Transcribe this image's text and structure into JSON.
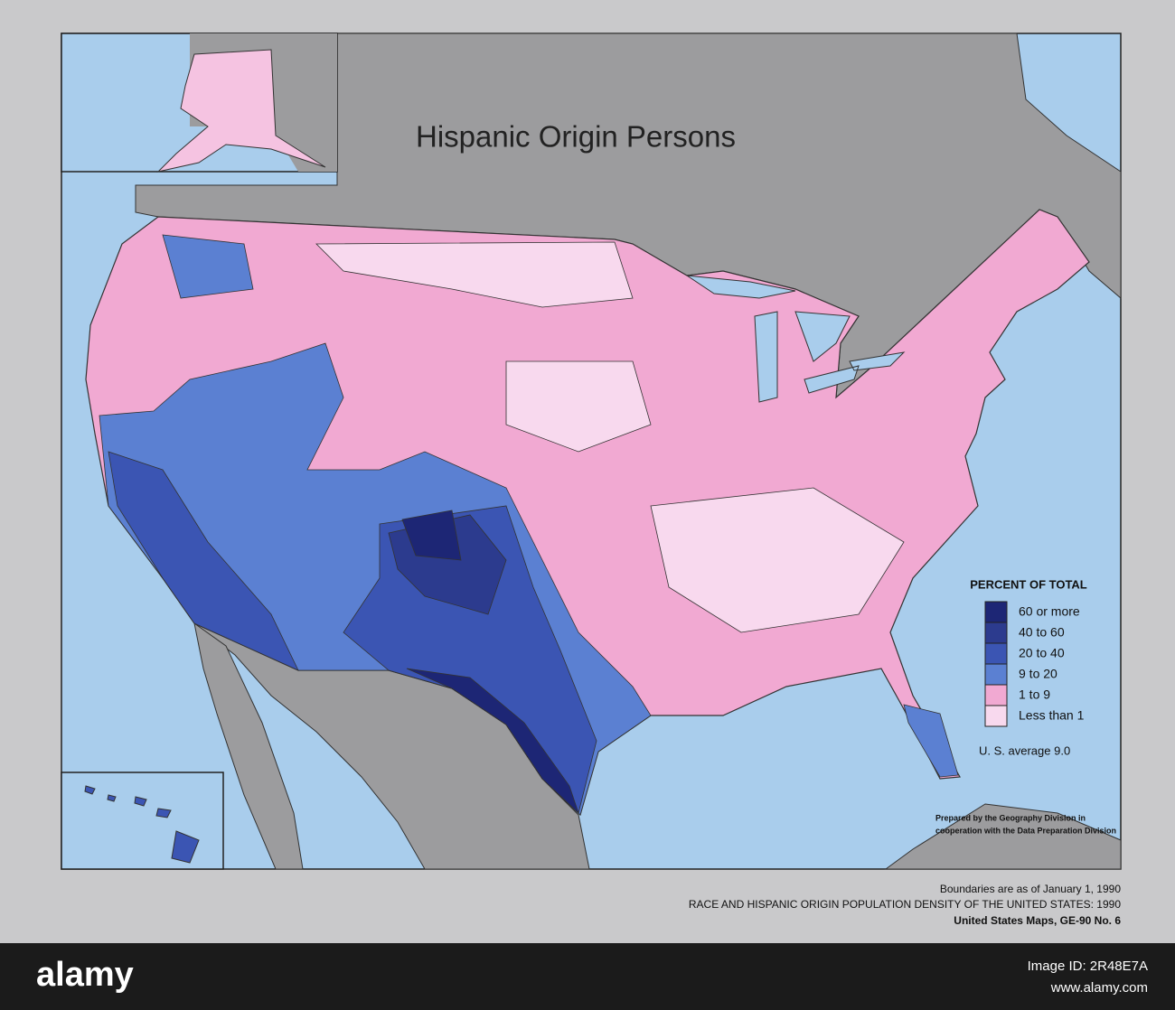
{
  "map": {
    "title": "Hispanic Origin Persons",
    "legend": {
      "title": "PERCENT OF TOTAL",
      "items": [
        {
          "label": "60 or more",
          "color": "#1d2675"
        },
        {
          "label": "40 to 60",
          "color": "#2c3b8e"
        },
        {
          "label": "20 to 40",
          "color": "#3b55b3"
        },
        {
          "label": "9 to 20",
          "color": "#5b80d2"
        },
        {
          "label": "1 to 9",
          "color": "#f1a9d2"
        },
        {
          "label": "Less than 1",
          "color": "#f8d9ee"
        }
      ]
    },
    "note": "U. S. average 9.0",
    "credit": [
      "Prepared by the Geography Division in",
      "cooperation with the Data Preparation Division"
    ]
  },
  "footer": [
    "Boundaries are as of January 1, 1990",
    "RACE AND HISPANIC ORIGIN POPULATION DENSITY OF THE UNITED STATES:  1990",
    "United States Maps, GE-90 No. 6"
  ],
  "watermark": {
    "logo": "alamy",
    "image_id": "Image ID: 2R48E7A",
    "site": "www.alamy.com"
  }
}
